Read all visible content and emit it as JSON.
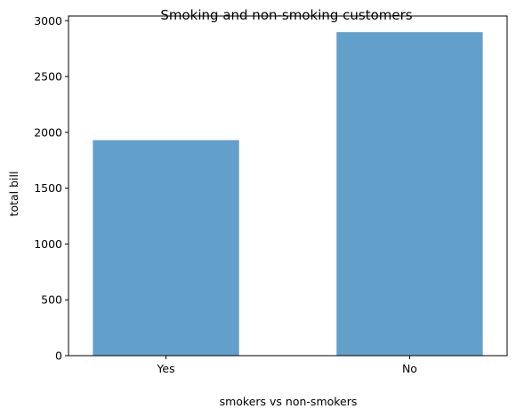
{
  "chart_data": {
    "type": "bar",
    "title": "Smoking and non-smoking customers",
    "xlabel": "smokers vs non-smokers",
    "ylabel": "total bill",
    "categories": [
      "Yes",
      "No"
    ],
    "values": [
      1930.34,
      2897.43
    ],
    "ylim": [
      0,
      3042
    ],
    "yticks": [
      0,
      500,
      1000,
      1500,
      2000,
      2500,
      3000
    ],
    "grid": false,
    "bar_color": "#62a0cb"
  }
}
